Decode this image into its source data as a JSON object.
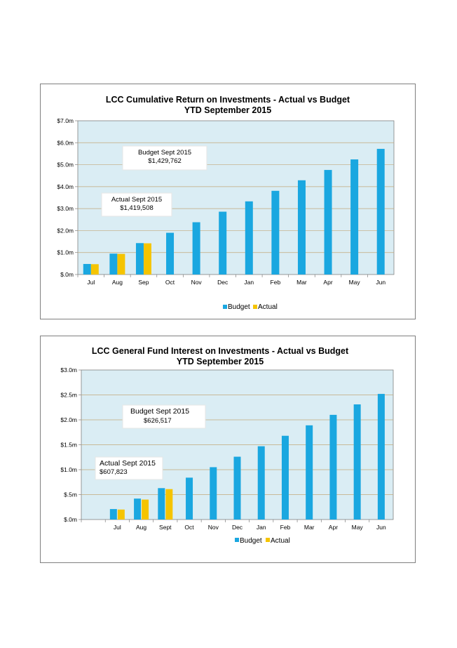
{
  "colors": {
    "budget": "#1aa7e0",
    "actual": "#f5c400",
    "plot_bg": "#daedf4",
    "grid": "#c2a87a"
  },
  "chart_data": [
    {
      "type": "bar",
      "title": "LCC Cumulative Return on  Investments  - Actual vs Budget",
      "subtitle": "YTD  September 2015",
      "categories": [
        "Jul",
        "Aug",
        "Sep",
        "Oct",
        "Nov",
        "Dec",
        "Jan",
        "Feb",
        "Mar",
        "Apr",
        "May",
        "Jun"
      ],
      "yticks": [
        "$.0m",
        "$1.0m",
        "$2.0m",
        "$3.0m",
        "$4.0m",
        "$5.0m",
        "$6.0m",
        "$7.0m"
      ],
      "ylim": [
        0,
        7
      ],
      "grid": true,
      "legend": "bottom-center",
      "series": [
        {
          "name": "Budget",
          "values": [
            0.48,
            0.95,
            1.43,
            1.9,
            2.38,
            2.86,
            3.33,
            3.81,
            4.29,
            4.76,
            5.24,
            5.72
          ]
        },
        {
          "name": "Actual",
          "values": [
            0.47,
            0.94,
            1.42,
            null,
            null,
            null,
            null,
            null,
            null,
            null,
            null,
            null
          ]
        }
      ],
      "annotations": [
        {
          "line1": "Budget Sept 2015",
          "line2": "$1,429,762"
        },
        {
          "line1": "Actual Sept 2015",
          "line2": "$1,419,508"
        }
      ]
    },
    {
      "type": "bar",
      "title": "LCC General Fund  Interest  on  Investments  - Actual vs Budget",
      "subtitle": "YTD   September 2015",
      "categories": [
        "",
        "Jul",
        "Aug",
        "Sept",
        "Oct",
        "Nov",
        "Dec",
        "Jan",
        "Feb",
        "Mar",
        "Apr",
        "May",
        "Jun"
      ],
      "yticks": [
        "$.0m",
        "$.5m",
        "$1.0m",
        "$1.5m",
        "$2.0m",
        "$2.5m",
        "$3.0m"
      ],
      "ylim": [
        0,
        3
      ],
      "grid": true,
      "legend": "bottom-center",
      "series": [
        {
          "name": "Budget",
          "values": [
            null,
            0.21,
            0.42,
            0.63,
            0.84,
            1.05,
            1.26,
            1.47,
            1.68,
            1.89,
            2.1,
            2.31,
            2.52
          ]
        },
        {
          "name": "Actual",
          "values": [
            null,
            0.2,
            0.4,
            0.61,
            null,
            null,
            null,
            null,
            null,
            null,
            null,
            null,
            null
          ]
        }
      ],
      "annotations": [
        {
          "line1": "Budget  Sept 2015",
          "line2": "$626,517"
        },
        {
          "line1": "Actual Sept 2015",
          "line2": "$607,823"
        }
      ]
    }
  ]
}
